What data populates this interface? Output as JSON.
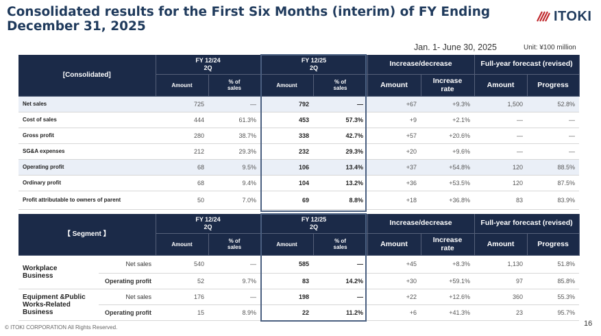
{
  "title": "Consolidated results for the First Six Months (interim) of FY Ending December 31, 2025",
  "logo": {
    "text": "ITOKI",
    "icon": "itoki-hatch-logo-icon"
  },
  "period": "Jan. 1- June 30, 2025",
  "unit": "Unit: ¥100 million",
  "consolidated": {
    "corner_label": "[Consolidated]",
    "fy24": "FY 12/24\n2Q",
    "fy25": "FY 12/25\n2Q",
    "incdec": "Increase/decrease",
    "forecast": "Full-year forecast (revised)",
    "amount": "Amount",
    "pct_sales": "% of\nsales",
    "inc_amount": "Amount",
    "inc_rate": "Increase\nrate",
    "fc_amount": "Amount",
    "progress": "Progress",
    "rows": [
      {
        "label": "Net sales",
        "a24": "725",
        "p24": "—",
        "a25": "792",
        "p25": "—",
        "inc": "+67",
        "rate": "+9.3%",
        "fc": "1,500",
        "prog": "52.8%"
      },
      {
        "label": "Cost of sales",
        "a24": "444",
        "p24": "61.3%",
        "a25": "453",
        "p25": "57.3%",
        "inc": "+9",
        "rate": "+2.1%",
        "fc": "—",
        "prog": "—"
      },
      {
        "label": "Gross profit",
        "a24": "280",
        "p24": "38.7%",
        "a25": "338",
        "p25": "42.7%",
        "inc": "+57",
        "rate": "+20.6%",
        "fc": "—",
        "prog": "—"
      },
      {
        "label": "SG&A expenses",
        "a24": "212",
        "p24": "29.3%",
        "a25": "232",
        "p25": "29.3%",
        "inc": "+20",
        "rate": "+9.6%",
        "fc": "—",
        "prog": "—"
      },
      {
        "label": "Operating profit",
        "a24": "68",
        "p24": "9.5%",
        "a25": "106",
        "p25": "13.4%",
        "inc": "+37",
        "rate": "+54.8%",
        "fc": "120",
        "prog": "88.5%"
      },
      {
        "label": "Ordinary profit",
        "a24": "68",
        "p24": "9.4%",
        "a25": "104",
        "p25": "13.2%",
        "inc": "+36",
        "rate": "+53.5%",
        "fc": "120",
        "prog": "87.5%"
      },
      {
        "label": "Profit attributable to owners of parent",
        "a24": "50",
        "p24": "7.0%",
        "a25": "69",
        "p25": "8.8%",
        "inc": "+18",
        "rate": "+36.8%",
        "fc": "83",
        "prog": "83.9%"
      }
    ]
  },
  "segment": {
    "corner_label": "【 Segment 】",
    "fy24": "FY 12/24\n2Q",
    "fy25": "FY 12/25\n2Q",
    "incdec": "Increase/decrease",
    "forecast": "Full-year forecast (revised)",
    "amount": "Amount",
    "pct_sales": "% of\nsales",
    "inc_amount": "Amount",
    "inc_rate": "Increase\nrate",
    "fc_amount": "Amount",
    "progress": "Progress",
    "groups": [
      {
        "name": "Workplace\nBusiness",
        "rows": [
          {
            "sub": "Net sales",
            "a24": "540",
            "p24": "—",
            "a25": "585",
            "p25": "—",
            "inc": "+45",
            "rate": "+8.3%",
            "fc": "1,130",
            "prog": "51.8%"
          },
          {
            "sub": "Operating profit",
            "a24": "52",
            "p24": "9.7%",
            "a25": "83",
            "p25": "14.2%",
            "inc": "+30",
            "rate": "+59.1%",
            "fc": "97",
            "prog": "85.8%"
          }
        ]
      },
      {
        "name": "Equipment &Public\nWorks-Related\nBusiness",
        "rows": [
          {
            "sub": "Net sales",
            "a24": "176",
            "p24": "—",
            "a25": "198",
            "p25": "—",
            "inc": "+22",
            "rate": "+12.6%",
            "fc": "360",
            "prog": "55.3%"
          },
          {
            "sub": "Operating profit",
            "a24": "15",
            "p24": "8.9%",
            "a25": "22",
            "p25": "11.2%",
            "inc": "+6",
            "rate": "+41.3%",
            "fc": "23",
            "prog": "95.7%"
          }
        ]
      }
    ]
  },
  "footer": "© ITOKI CORPORATION All Rights Reserved.",
  "page_number": "16"
}
